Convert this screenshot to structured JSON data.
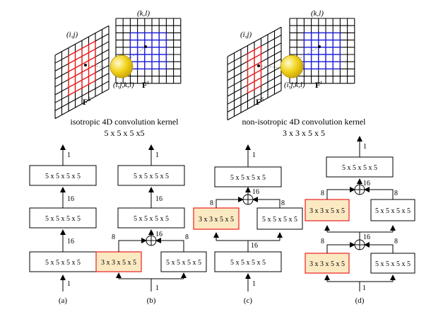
{
  "top_left": {
    "label_ij": "(i,j)",
    "label_kl": "(k,l)",
    "label_ijkl": "(i,j,k,l)",
    "label_Fs_base": "F",
    "label_Fs_sup": "S",
    "label_Ft_base": "F",
    "label_Ft_sup": "t",
    "caption_line1": "isotropic 4D convolution kernel",
    "caption_line2": "5 x 5 x 5 x5"
  },
  "top_right": {
    "label_ij": "(i,j)",
    "label_kl": "(k,l)",
    "label_ijkl": "(i,j,k,l)",
    "label_Fs_base": "F",
    "label_Fs_sup": "S",
    "label_Ft_base": "F",
    "label_Ft_sup": "t",
    "caption_line1": "non-isotropic 4D convolution kernel",
    "caption_line2": "3 x 3 x 5 x 5"
  },
  "colors": {
    "red_grid": "#e8201e",
    "blue_grid": "#1f1fe0",
    "box_fill_highlight": "#fbe9c2",
    "box_border_highlight": "#e8201e",
    "sphere": "#f2d21a"
  },
  "net_a": {
    "label": "(a)",
    "input": "1",
    "box1": "5 x 5 x 5 x 5",
    "mid1": "16",
    "box2": "5 x 5 x 5 x 5",
    "mid2": "16",
    "box3": "5 x 5 x 5 x 5",
    "output": "1"
  },
  "net_b": {
    "label": "(b)",
    "input": "1",
    "left_box": "3 x 3 x 5 x 5",
    "right_box": "5 x 5 x 5 x 5",
    "left_ch": "8",
    "right_ch": "8",
    "sum_ch": "16",
    "box2": "5 x 5 x 5 x 5",
    "mid2": "16",
    "box3": "5 x 5 x 5 x 5",
    "output": "1"
  },
  "net_c": {
    "label": "(c)",
    "input": "1",
    "box1": "5 x 5 x 5 x 5",
    "mid1": "16",
    "left_box": "3 x 3 x 5 x 5",
    "right_box": "5 x 5 x 5 x 5",
    "left_ch": "8",
    "right_ch": "8",
    "sum_ch": "16",
    "box3": "5 x 5 x 5 x 5",
    "output": "1"
  },
  "net_d": {
    "label": "(d)",
    "input": "1",
    "left_box1": "3 x 3 x 5 x 5",
    "right_box1": "5 x 5 x 5 x 5",
    "left_ch1": "8",
    "right_ch1": "8",
    "sum_ch1": "16",
    "left_box2": "3 x 3 x 5 x 5",
    "right_box2": "5 x 5 x 5 x 5",
    "left_ch2": "8",
    "right_ch2": "8",
    "sum_ch2": "16",
    "box3": "5 x 5 x 5 x 5",
    "output": "1"
  }
}
